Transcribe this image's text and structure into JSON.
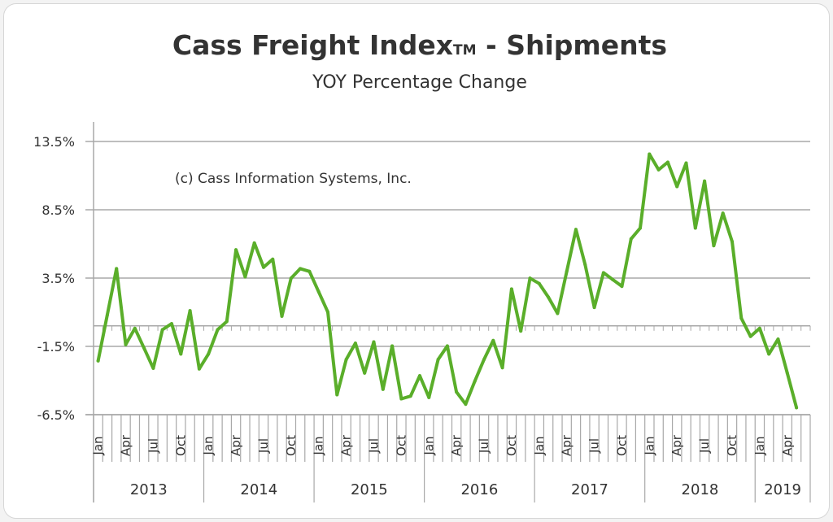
{
  "chart_data": {
    "type": "line",
    "title": "Cass Freight Index",
    "title_mark": "TM",
    "title_suffix": " - Shipments",
    "subtitle": "YOY Percentage Change",
    "annotation": "(c) Cass Information Systems, Inc.",
    "xlabel": "",
    "ylabel": "",
    "ylim": [
      -6.5,
      13.5
    ],
    "y_ticks": [
      "13.5%",
      "8.5%",
      "3.5%",
      "-1.5%",
      "-6.5%"
    ],
    "y_tick_values": [
      13.5,
      8.5,
      3.5,
      -1.5,
      -6.5
    ],
    "grid": true,
    "line_color": "#5aae2a",
    "years": [
      "2013",
      "2014",
      "2015",
      "2016",
      "2017",
      "2018",
      "2019"
    ],
    "month_labels": [
      "Jan",
      "Apr",
      "Jul",
      "Oct"
    ],
    "start": "2013-01",
    "values": [
      -2.56,
      0.81,
      4.19,
      -1.37,
      -0.18,
      -1.63,
      -3.1,
      -0.28,
      0.16,
      -2.06,
      1.11,
      -3.15,
      -2.06,
      -0.28,
      0.32,
      5.57,
      3.59,
      6.07,
      4.29,
      4.88,
      0.71,
      3.49,
      4.19,
      3.99,
      2.5,
      1.01,
      -5.04,
      -2.46,
      -1.27,
      -3.45,
      -1.17,
      -4.64,
      -1.47,
      -5.34,
      -5.14,
      -3.65,
      -5.24,
      -2.46,
      -1.47,
      -4.84,
      -5.73,
      -4.05,
      -2.46,
      -1.07,
      -3.06,
      2.7,
      -0.38,
      3.49,
      3.1,
      2.1,
      0.91,
      3.99,
      7.06,
      4.48,
      1.35,
      3.89,
      3.39,
      2.9,
      6.37,
      7.16,
      12.58,
      11.43,
      11.98,
      10.2,
      11.92,
      7.16,
      10.6,
      5.87,
      8.25,
      6.17,
      0.56,
      -0.77,
      -0.18,
      -2.06,
      -0.97,
      -3.45,
      -5.99
    ]
  }
}
